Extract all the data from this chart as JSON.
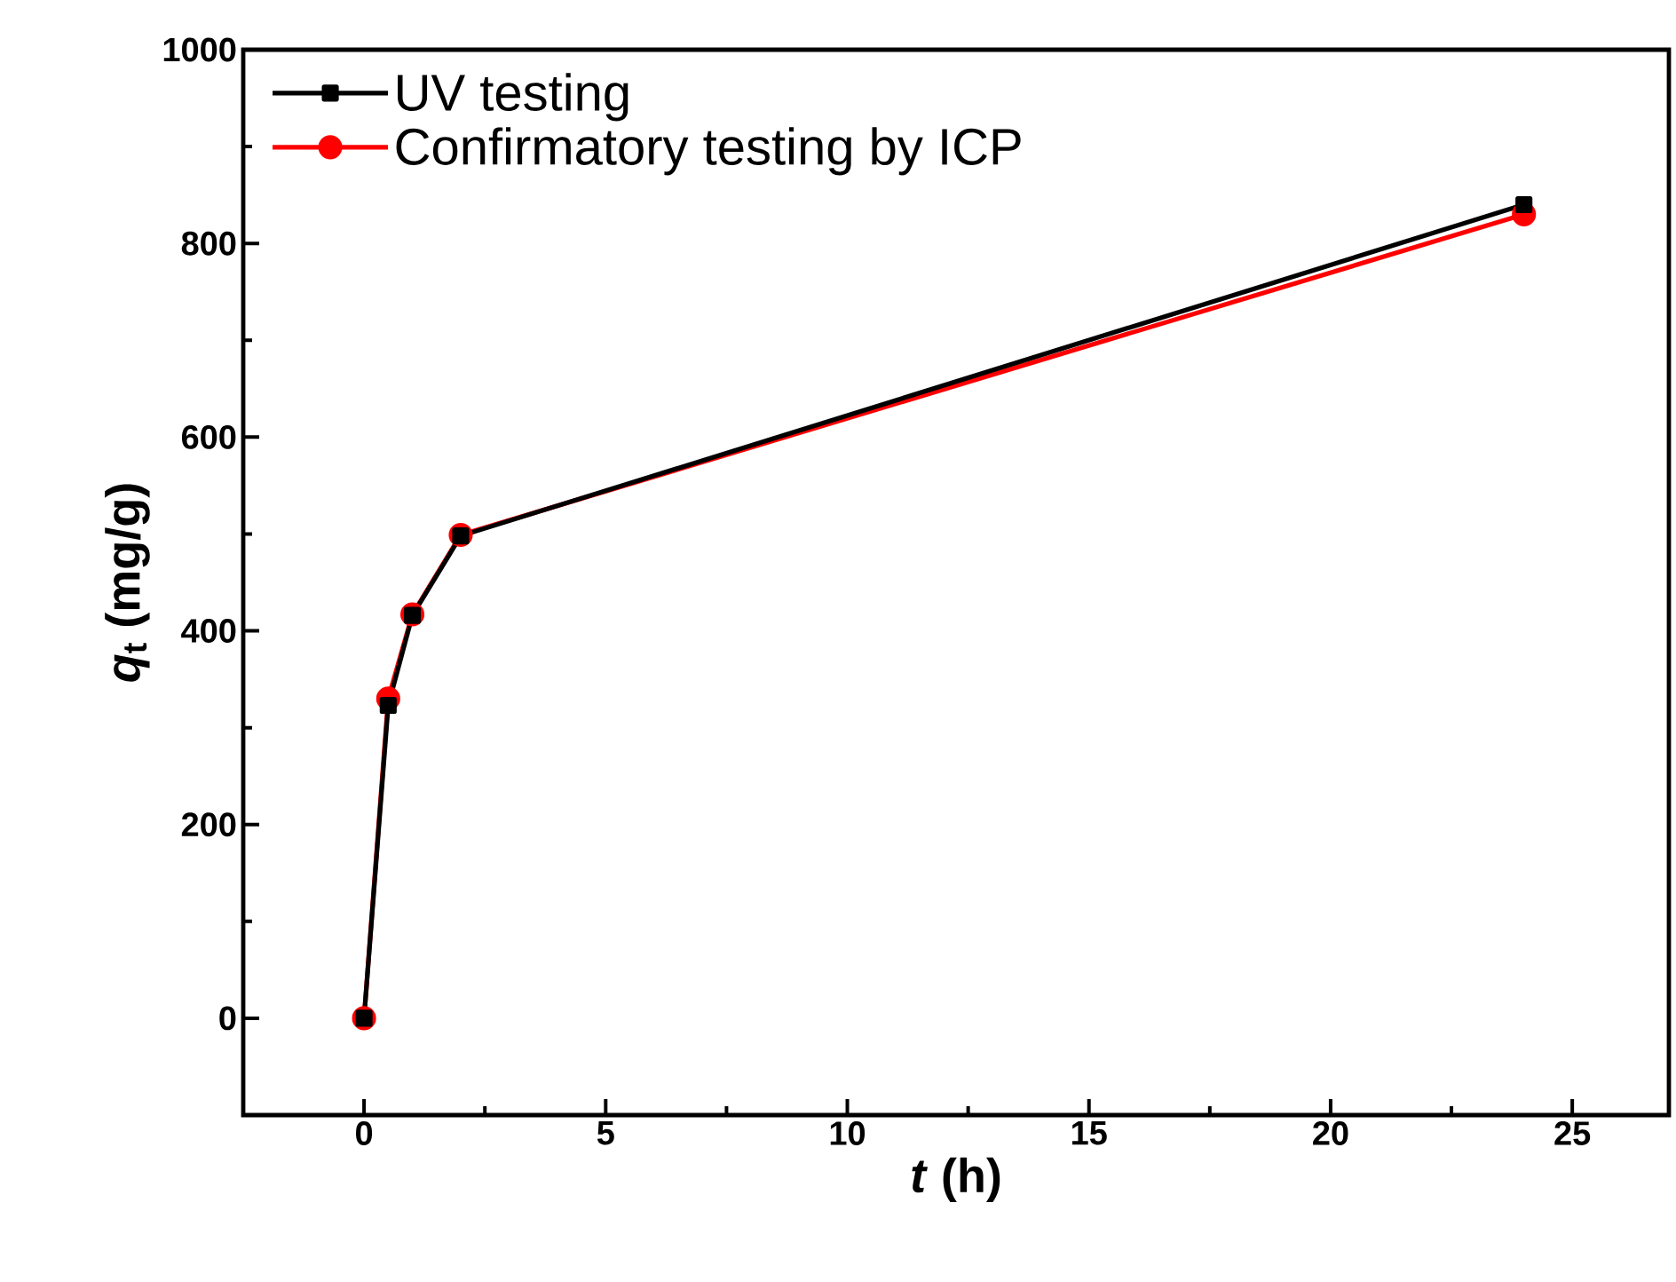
{
  "chart_data": {
    "type": "line",
    "xlabel": "*t* (h)",
    "ylabel": "*q*$_{t}$ (mg/g)",
    "xlim": [
      -2.5,
      27
    ],
    "ylim": [
      -100,
      1000
    ],
    "xticks": [
      0,
      5,
      10,
      15,
      20,
      25
    ],
    "yticks": [
      0,
      200,
      400,
      600,
      800,
      1000
    ],
    "legend": "top left",
    "grid": false,
    "series": [
      {
        "name": "UV testing",
        "color": "#000000",
        "marker": "square",
        "x": [
          0,
          0.5,
          1,
          2,
          24
        ],
        "values": [
          0,
          323,
          416,
          498,
          840
        ]
      },
      {
        "name": "Confirmatory testing by ICP",
        "color": "#ff0000",
        "marker": "circle",
        "x": [
          0,
          0.5,
          1,
          2,
          24
        ],
        "values": [
          0,
          330,
          417,
          499,
          830
        ]
      }
    ]
  }
}
